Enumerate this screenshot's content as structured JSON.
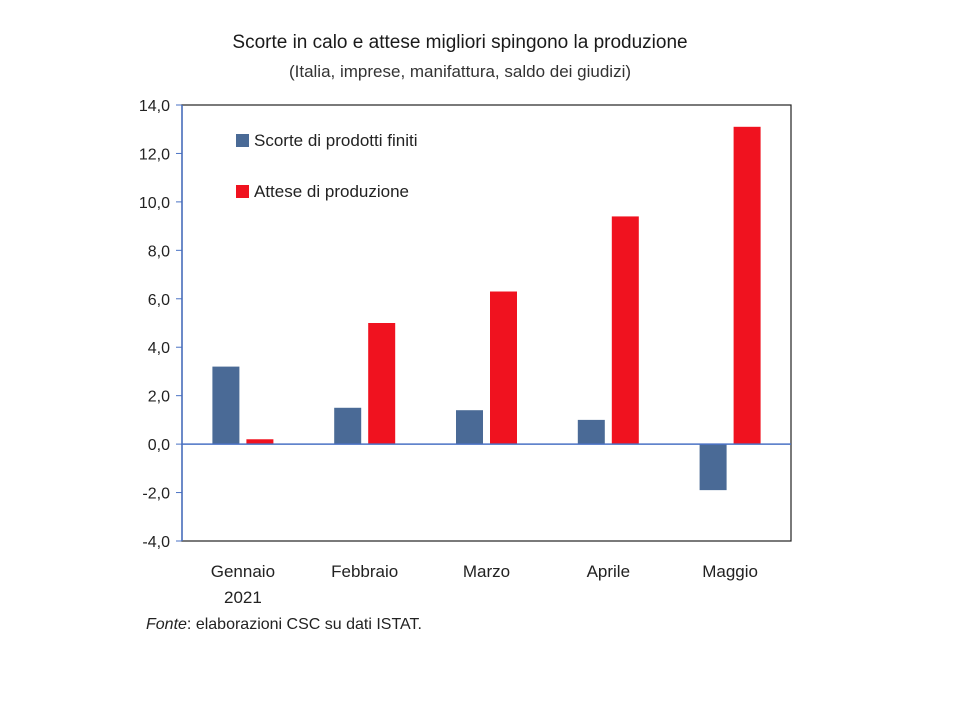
{
  "chart_data": {
    "type": "bar",
    "title": "Scorte in calo e attese migliori spingono la produzione",
    "subtitle": "(Italia, imprese, manifattura, saldo dei giudizi)",
    "categories": [
      [
        "Gennaio",
        "2021"
      ],
      [
        "Febbraio"
      ],
      [
        "Marzo"
      ],
      [
        "Aprile"
      ],
      [
        "Maggio"
      ]
    ],
    "series": [
      {
        "name": "Scorte di prodotti finiti",
        "color": "#4a6a96",
        "values": [
          3.2,
          1.5,
          1.4,
          1.0,
          -1.9
        ]
      },
      {
        "name": "Attese di produzione",
        "color": "#f0121f",
        "values": [
          0.2,
          5.0,
          6.3,
          9.4,
          13.1
        ]
      }
    ],
    "ylim": [
      -4.0,
      14.0
    ],
    "yticks": [
      "14,0",
      "12,0",
      "10,0",
      "8,0",
      "6,0",
      "4,0",
      "2,0",
      "0,0",
      "-2,0",
      "-4,0"
    ],
    "ytick_values": [
      14,
      12,
      10,
      8,
      6,
      4,
      2,
      0,
      -2,
      -4
    ],
    "xlabel": "",
    "ylabel": "",
    "legend_position": "top-left"
  },
  "source": {
    "label": "Fonte",
    "text": ": elaborazioni CSC su dati ISTAT."
  }
}
